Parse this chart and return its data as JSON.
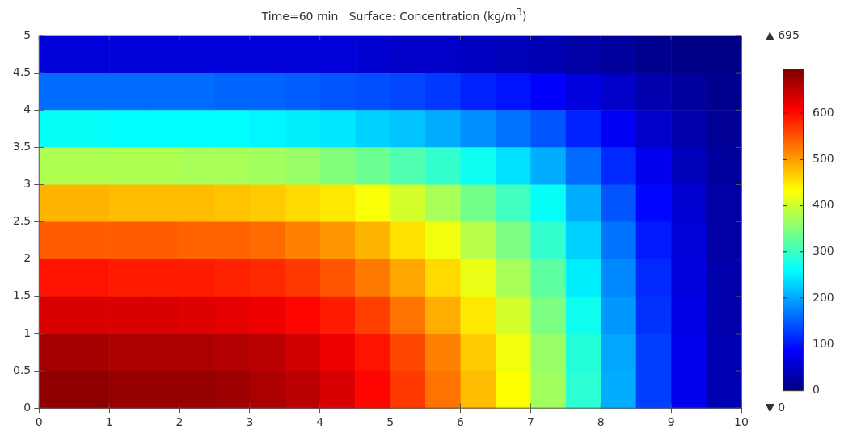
{
  "chart_data": {
    "type": "heatmap",
    "title": "Time=60 min   Surface: Concentration (kg/m$^{3}$)",
    "xlim": [
      0,
      10
    ],
    "ylim": [
      0,
      5
    ],
    "xticks": [
      0,
      1,
      2,
      3,
      4,
      5,
      6,
      7,
      8,
      9,
      10
    ],
    "yticks": [
      0,
      0.5,
      1,
      1.5,
      2,
      2.5,
      3,
      3.5,
      4,
      4.5,
      5
    ],
    "clim": [
      0,
      695
    ],
    "cticks": [
      0,
      100,
      200,
      300,
      400,
      500,
      600
    ],
    "annotations": [
      "▲ 695",
      "▼ 0"
    ],
    "cells": [
      [
        60,
        60,
        60,
        60,
        60,
        60,
        60,
        60,
        60,
        55,
        50,
        50,
        45,
        40,
        35,
        25,
        20,
        10,
        5,
        5
      ],
      [
        160,
        160,
        160,
        160,
        160,
        155,
        155,
        150,
        145,
        140,
        135,
        125,
        110,
        100,
        85,
        65,
        50,
        30,
        20,
        10
      ],
      [
        265,
        265,
        260,
        260,
        260,
        260,
        255,
        250,
        245,
        230,
        220,
        205,
        185,
        165,
        145,
        110,
        80,
        50,
        30,
        15
      ],
      [
        380,
        380,
        380,
        380,
        375,
        375,
        370,
        365,
        350,
        335,
        315,
        295,
        270,
        240,
        205,
        160,
        115,
        75,
        40,
        20
      ],
      [
        485,
        485,
        480,
        480,
        480,
        475,
        470,
        460,
        450,
        430,
        405,
        375,
        340,
        305,
        265,
        205,
        145,
        90,
        55,
        25
      ],
      [
        545,
        545,
        545,
        545,
        540,
        540,
        535,
        520,
        505,
        485,
        455,
        425,
        385,
        345,
        295,
        230,
        165,
        105,
        60,
        25
      ],
      [
        595,
        595,
        590,
        590,
        590,
        585,
        580,
        570,
        550,
        525,
        495,
        460,
        420,
        375,
        325,
        250,
        180,
        115,
        65,
        30
      ],
      [
        635,
        635,
        635,
        635,
        630,
        625,
        620,
        605,
        590,
        565,
        530,
        490,
        450,
        405,
        345,
        270,
        190,
        120,
        70,
        30
      ],
      [
        670,
        670,
        665,
        665,
        665,
        660,
        655,
        640,
        620,
        595,
        560,
        520,
        470,
        425,
        365,
        285,
        200,
        130,
        75,
        35
      ],
      [
        685,
        685,
        680,
        680,
        680,
        675,
        665,
        655,
        635,
        605,
        570,
        530,
        480,
        435,
        370,
        290,
        205,
        130,
        75,
        35
      ]
    ]
  }
}
